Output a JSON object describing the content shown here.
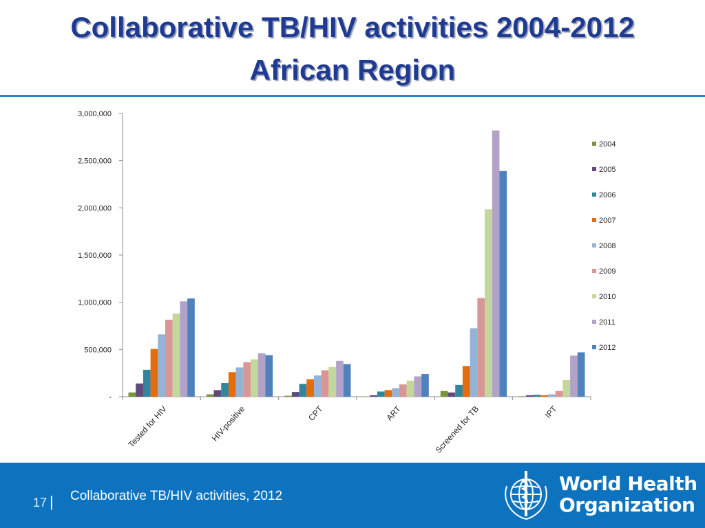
{
  "header": {
    "title_line1": "Collaborative TB/HIV activities 2004-2012",
    "title_line2": "African Region"
  },
  "footer": {
    "page_number": "17",
    "separator": "|",
    "caption": "Collaborative TB/HIV activities, 2012",
    "logo_line1": "World Health",
    "logo_line2": "Organization"
  },
  "colors": {
    "title": "#1f3a93",
    "footer_bg": "#0d73bf"
  },
  "chart_data": {
    "type": "bar",
    "categories": [
      "Tested for HIV",
      "HIV-positive",
      "CPT",
      "ART",
      "Screened for TB",
      "IPT"
    ],
    "ylim": [
      0,
      3000000
    ],
    "yticks": [
      0,
      500000,
      1000000,
      1500000,
      2000000,
      2500000,
      3000000
    ],
    "ytick_labels": [
      "-",
      "500,000",
      "1,000,000",
      "1,500,000",
      "2,000,000",
      "2,500,000",
      "3,000,000"
    ],
    "legend_position": "right",
    "grid": false,
    "series": [
      {
        "name": "2004",
        "color": "#77933c",
        "values": [
          45000,
          25000,
          10000,
          3000,
          60000,
          5000
        ]
      },
      {
        "name": "2005",
        "color": "#604a7b",
        "values": [
          140000,
          70000,
          50000,
          15000,
          45000,
          15000
        ]
      },
      {
        "name": "2006",
        "color": "#31859c",
        "values": [
          285000,
          145000,
          135000,
          55000,
          125000,
          20000
        ]
      },
      {
        "name": "2007",
        "color": "#e46c0a",
        "values": [
          505000,
          260000,
          185000,
          70000,
          325000,
          15000
        ]
      },
      {
        "name": "2008",
        "color": "#95b3d7",
        "values": [
          660000,
          310000,
          225000,
          90000,
          725000,
          25000
        ]
      },
      {
        "name": "2009",
        "color": "#d99694",
        "values": [
          815000,
          365000,
          280000,
          130000,
          1045000,
          60000
        ]
      },
      {
        "name": "2010",
        "color": "#c3d69b",
        "values": [
          880000,
          395000,
          315000,
          170000,
          1985000,
          175000
        ]
      },
      {
        "name": "2011",
        "color": "#b3a2c7",
        "values": [
          1010000,
          460000,
          380000,
          215000,
          2820000,
          435000
        ]
      },
      {
        "name": "2012",
        "color": "#4f81bd",
        "values": [
          1040000,
          440000,
          345000,
          240000,
          2390000,
          470000
        ]
      }
    ]
  }
}
